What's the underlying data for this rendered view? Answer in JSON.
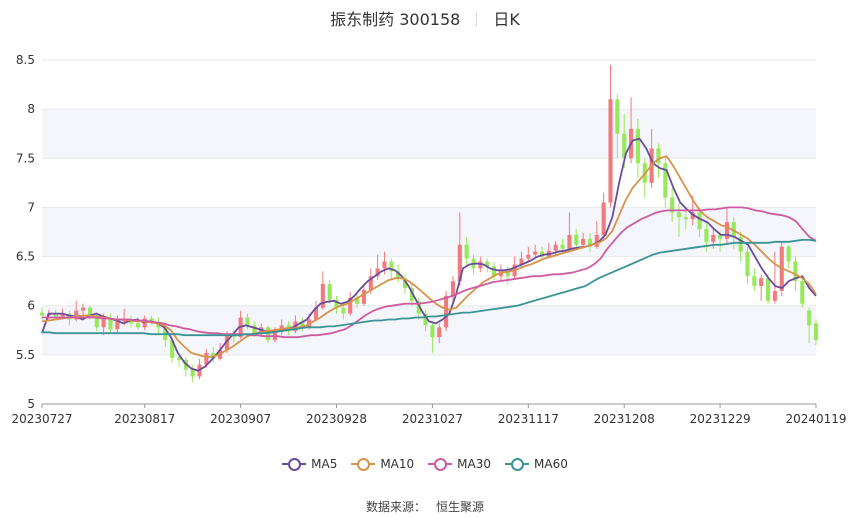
{
  "header": {
    "title": "振东制药 300158",
    "period": "日K"
  },
  "source": {
    "label": "数据来源：",
    "value": "恒生聚源"
  },
  "colors": {
    "up": "#f07b7f",
    "down": "#97e85a",
    "grid": "#e8e8e8",
    "band": "#f4f6fb",
    "axis": "#333333"
  },
  "chart_data": {
    "type": "candlestick",
    "title": "振东制药 300158",
    "subtitle": "日K",
    "ylim": [
      5,
      8.5
    ],
    "yticks": [
      5,
      5.5,
      6,
      6.5,
      7,
      7.5,
      8,
      8.5
    ],
    "ytick_labels": [
      "5",
      "5.5",
      "6",
      "6.5",
      "7",
      "7.5",
      "8",
      "8.5"
    ],
    "grid": true,
    "legend_position": "bottom",
    "x_tick_labels": [
      "20230727",
      "20230817",
      "20230907",
      "20230928",
      "20231027",
      "20231117",
      "20231208",
      "20231229",
      "20240119"
    ],
    "x_tick_index": [
      0,
      15,
      29,
      43,
      57,
      71,
      85,
      99,
      113
    ],
    "candles": [
      [
        5.93,
        5.9,
        5.98,
        5.86
      ],
      [
        5.9,
        5.92,
        5.96,
        5.85
      ],
      [
        5.92,
        5.89,
        5.96,
        5.86
      ],
      [
        5.89,
        5.92,
        5.97,
        5.86
      ],
      [
        5.92,
        5.86,
        5.95,
        5.8
      ],
      [
        5.86,
        5.95,
        6.05,
        5.84
      ],
      [
        5.95,
        5.98,
        6.02,
        5.9
      ],
      [
        5.98,
        5.9,
        6.0,
        5.86
      ],
      [
        5.9,
        5.78,
        5.93,
        5.74
      ],
      [
        5.78,
        5.88,
        5.92,
        5.7
      ],
      [
        5.88,
        5.76,
        5.92,
        5.72
      ],
      [
        5.76,
        5.84,
        5.9,
        5.73
      ],
      [
        5.84,
        5.86,
        5.97,
        5.8
      ],
      [
        5.86,
        5.82,
        5.9,
        5.78
      ],
      [
        5.82,
        5.78,
        5.88,
        5.76
      ],
      [
        5.78,
        5.87,
        5.9,
        5.75
      ],
      [
        5.87,
        5.84,
        5.9,
        5.8
      ],
      [
        5.84,
        5.78,
        5.88,
        5.72
      ],
      [
        5.78,
        5.65,
        5.8,
        5.58
      ],
      [
        5.65,
        5.47,
        5.68,
        5.42
      ],
      [
        5.47,
        5.45,
        5.52,
        5.38
      ],
      [
        5.45,
        5.35,
        5.48,
        5.28
      ],
      [
        5.35,
        5.28,
        5.4,
        5.22
      ],
      [
        5.28,
        5.4,
        5.46,
        5.25
      ],
      [
        5.4,
        5.52,
        5.56,
        5.37
      ],
      [
        5.52,
        5.46,
        5.58,
        5.42
      ],
      [
        5.46,
        5.55,
        5.62,
        5.44
      ],
      [
        5.55,
        5.7,
        5.74,
        5.52
      ],
      [
        5.7,
        5.68,
        5.75,
        5.62
      ],
      [
        5.68,
        5.88,
        5.95,
        5.66
      ],
      [
        5.88,
        5.8,
        5.92,
        5.76
      ],
      [
        5.8,
        5.72,
        5.84,
        5.68
      ],
      [
        5.72,
        5.78,
        5.82,
        5.68
      ],
      [
        5.78,
        5.65,
        5.8,
        5.62
      ],
      [
        5.65,
        5.74,
        5.78,
        5.63
      ],
      [
        5.74,
        5.8,
        5.86,
        5.7
      ],
      [
        5.8,
        5.74,
        5.84,
        5.7
      ],
      [
        5.74,
        5.84,
        5.9,
        5.72
      ],
      [
        5.84,
        5.78,
        5.88,
        5.74
      ],
      [
        5.78,
        5.86,
        5.92,
        5.76
      ],
      [
        5.86,
        5.98,
        6.05,
        5.84
      ],
      [
        5.98,
        6.22,
        6.35,
        5.96
      ],
      [
        6.22,
        6.06,
        6.26,
        6.02
      ],
      [
        6.06,
        5.98,
        6.1,
        5.92
      ],
      [
        5.98,
        5.92,
        6.02,
        5.86
      ],
      [
        5.92,
        6.08,
        6.14,
        5.9
      ],
      [
        6.08,
        6.02,
        6.12,
        5.98
      ],
      [
        6.02,
        6.16,
        6.22,
        6.0
      ],
      [
        6.16,
        6.3,
        6.38,
        6.12
      ],
      [
        6.3,
        6.38,
        6.52,
        6.26
      ],
      [
        6.38,
        6.45,
        6.55,
        6.32
      ],
      [
        6.45,
        6.35,
        6.48,
        6.28
      ],
      [
        6.35,
        6.28,
        6.42,
        6.24
      ],
      [
        6.28,
        6.18,
        6.32,
        6.12
      ],
      [
        6.18,
        6.05,
        6.22,
        6.0
      ],
      [
        6.05,
        5.92,
        6.08,
        5.86
      ],
      [
        5.92,
        5.8,
        5.96,
        5.74
      ],
      [
        5.8,
        5.68,
        5.84,
        5.52
      ],
      [
        5.68,
        5.78,
        5.82,
        5.62
      ],
      [
        5.78,
        6.1,
        6.15,
        5.74
      ],
      [
        6.1,
        6.25,
        6.3,
        6.04
      ],
      [
        6.25,
        6.62,
        6.95,
        6.2
      ],
      [
        6.62,
        6.48,
        6.7,
        6.4
      ],
      [
        6.48,
        6.38,
        6.52,
        6.32
      ],
      [
        6.38,
        6.45,
        6.5,
        6.34
      ],
      [
        6.45,
        6.4,
        6.48,
        6.34
      ],
      [
        6.4,
        6.3,
        6.44,
        6.26
      ],
      [
        6.3,
        6.35,
        6.42,
        6.26
      ],
      [
        6.35,
        6.3,
        6.4,
        6.22
      ],
      [
        6.3,
        6.42,
        6.5,
        6.28
      ],
      [
        6.42,
        6.48,
        6.55,
        6.38
      ],
      [
        6.48,
        6.52,
        6.6,
        6.44
      ],
      [
        6.52,
        6.55,
        6.62,
        6.48
      ],
      [
        6.55,
        6.5,
        6.6,
        6.46
      ],
      [
        6.5,
        6.56,
        6.64,
        6.48
      ],
      [
        6.56,
        6.62,
        6.66,
        6.52
      ],
      [
        6.62,
        6.58,
        6.68,
        6.54
      ],
      [
        6.58,
        6.72,
        6.95,
        6.56
      ],
      [
        6.72,
        6.62,
        6.78,
        6.58
      ],
      [
        6.62,
        6.68,
        6.74,
        6.58
      ],
      [
        6.68,
        6.6,
        6.74,
        6.55
      ],
      [
        6.6,
        6.72,
        6.86,
        6.58
      ],
      [
        6.72,
        7.05,
        7.15,
        6.68
      ],
      [
        7.05,
        8.1,
        8.45,
        7.0
      ],
      [
        8.1,
        7.75,
        8.15,
        7.5
      ],
      [
        7.75,
        7.5,
        7.95,
        7.4
      ],
      [
        7.5,
        7.8,
        8.12,
        7.45
      ],
      [
        7.8,
        7.45,
        7.9,
        7.3
      ],
      [
        7.45,
        7.25,
        7.5,
        7.1
      ],
      [
        7.25,
        7.6,
        7.8,
        7.2
      ],
      [
        7.6,
        7.45,
        7.65,
        7.3
      ],
      [
        7.45,
        7.1,
        7.5,
        7.0
      ],
      [
        7.1,
        6.95,
        7.2,
        6.85
      ],
      [
        6.95,
        6.9,
        7.05,
        6.7
      ],
      [
        6.9,
        6.88,
        6.98,
        6.78
      ],
      [
        6.88,
        6.95,
        7.12,
        6.82
      ],
      [
        6.95,
        6.78,
        7.0,
        6.7
      ],
      [
        6.78,
        6.65,
        6.85,
        6.55
      ],
      [
        6.65,
        6.72,
        6.8,
        6.58
      ],
      [
        6.72,
        6.68,
        6.76,
        6.55
      ],
      [
        6.68,
        6.85,
        7.0,
        6.62
      ],
      [
        6.85,
        6.7,
        6.9,
        6.58
      ],
      [
        6.7,
        6.55,
        6.75,
        6.45
      ],
      [
        6.55,
        6.3,
        6.6,
        6.22
      ],
      [
        6.3,
        6.2,
        6.38,
        6.15
      ],
      [
        6.2,
        6.28,
        6.32,
        6.05
      ],
      [
        6.28,
        6.05,
        6.32,
        6.02
      ],
      [
        6.05,
        6.15,
        6.55,
        6.02
      ],
      [
        6.15,
        6.6,
        6.65,
        6.1
      ],
      [
        6.6,
        6.45,
        6.62,
        6.38
      ],
      [
        6.45,
        6.25,
        6.5,
        6.15
      ],
      [
        6.25,
        6.02,
        6.3,
        5.98
      ],
      [
        5.95,
        5.8,
        5.98,
        5.62
      ],
      [
        5.82,
        5.65,
        5.86,
        5.6
      ]
    ],
    "series": [
      {
        "name": "MA5",
        "color": "#6a4c9c",
        "values": [
          5.72,
          5.92,
          5.92,
          5.92,
          5.9,
          5.89,
          5.86,
          5.9,
          5.92,
          5.89,
          5.87,
          5.85,
          5.82,
          5.85,
          5.86,
          5.83,
          5.84,
          5.82,
          5.78,
          5.68,
          5.52,
          5.42,
          5.36,
          5.34,
          5.38,
          5.45,
          5.53,
          5.62,
          5.7,
          5.78,
          5.8,
          5.78,
          5.76,
          5.74,
          5.74,
          5.75,
          5.76,
          5.78,
          5.82,
          5.86,
          5.95,
          6.02,
          6.04,
          6.05,
          6.02,
          6.04,
          6.1,
          6.18,
          6.25,
          6.3,
          6.35,
          6.38,
          6.36,
          6.3,
          6.2,
          6.07,
          5.94,
          5.84,
          5.82,
          5.86,
          5.92,
          6.12,
          6.38,
          6.42,
          6.43,
          6.42,
          6.38,
          6.36,
          6.36,
          6.37,
          6.4,
          6.43,
          6.46,
          6.5,
          6.52,
          6.53,
          6.55,
          6.56,
          6.58,
          6.59,
          6.6,
          6.62,
          6.65,
          6.72,
          6.9,
          7.25,
          7.55,
          7.68,
          7.7,
          7.6,
          7.45,
          7.4,
          7.38,
          7.2,
          7.05,
          6.98,
          6.92,
          6.88,
          6.85,
          6.78,
          6.72,
          6.72,
          6.7,
          6.66,
          6.62,
          6.5,
          6.38,
          6.28,
          6.2,
          6.18,
          6.25,
          6.28,
          6.3,
          6.18,
          6.1
        ]
      },
      {
        "name": "MA10",
        "color": "#d9924a",
        "values": [
          5.84,
          5.85,
          5.86,
          5.87,
          5.88,
          5.89,
          5.9,
          5.9,
          5.89,
          5.88,
          5.87,
          5.86,
          5.86,
          5.85,
          5.84,
          5.84,
          5.83,
          5.82,
          5.8,
          5.75,
          5.65,
          5.58,
          5.52,
          5.5,
          5.48,
          5.48,
          5.5,
          5.54,
          5.58,
          5.63,
          5.68,
          5.71,
          5.73,
          5.74,
          5.75,
          5.76,
          5.77,
          5.77,
          5.78,
          5.8,
          5.84,
          5.88,
          5.93,
          5.97,
          6.0,
          6.02,
          6.06,
          6.1,
          6.14,
          6.18,
          6.22,
          6.26,
          6.28,
          6.28,
          6.25,
          6.2,
          6.14,
          6.08,
          6.02,
          5.98,
          5.96,
          5.98,
          6.05,
          6.12,
          6.18,
          6.24,
          6.28,
          6.32,
          6.34,
          6.35,
          6.37,
          6.4,
          6.42,
          6.45,
          6.48,
          6.5,
          6.52,
          6.54,
          6.56,
          6.58,
          6.6,
          6.62,
          6.64,
          6.68,
          6.76,
          6.92,
          7.08,
          7.2,
          7.28,
          7.36,
          7.45,
          7.5,
          7.52,
          7.42,
          7.3,
          7.18,
          7.06,
          6.96,
          6.9,
          6.86,
          6.82,
          6.8,
          6.76,
          6.72,
          6.68,
          6.62,
          6.55,
          6.48,
          6.42,
          6.38,
          6.35,
          6.32,
          6.28,
          6.22,
          6.12
        ]
      },
      {
        "name": "MA30",
        "color": "#cf5ca0",
        "values": [
          5.88,
          5.88,
          5.88,
          5.88,
          5.88,
          5.88,
          5.88,
          5.88,
          5.88,
          5.87,
          5.87,
          5.86,
          5.86,
          5.86,
          5.85,
          5.85,
          5.84,
          5.83,
          5.82,
          5.8,
          5.79,
          5.77,
          5.76,
          5.74,
          5.73,
          5.72,
          5.72,
          5.71,
          5.71,
          5.71,
          5.71,
          5.7,
          5.7,
          5.69,
          5.69,
          5.69,
          5.68,
          5.68,
          5.68,
          5.69,
          5.7,
          5.7,
          5.71,
          5.72,
          5.74,
          5.76,
          5.8,
          5.85,
          5.9,
          5.94,
          5.97,
          5.99,
          6.0,
          6.01,
          6.02,
          6.02,
          6.02,
          6.03,
          6.04,
          6.06,
          6.08,
          6.1,
          6.13,
          6.16,
          6.18,
          6.2,
          6.22,
          6.24,
          6.25,
          6.26,
          6.27,
          6.28,
          6.29,
          6.3,
          6.3,
          6.31,
          6.32,
          6.32,
          6.33,
          6.34,
          6.36,
          6.38,
          6.42,
          6.48,
          6.58,
          6.66,
          6.74,
          6.8,
          6.84,
          6.88,
          6.91,
          6.94,
          6.96,
          6.97,
          6.97,
          6.97,
          6.97,
          6.97,
          6.97,
          6.98,
          6.98,
          6.99,
          7.0,
          7.0,
          7.0,
          6.99,
          6.97,
          6.96,
          6.94,
          6.93,
          6.92,
          6.9,
          6.86,
          6.78,
          6.7,
          6.66
        ]
      },
      {
        "name": "MA60",
        "color": "#3c9494",
        "values": [
          5.73,
          5.73,
          5.72,
          5.72,
          5.72,
          5.72,
          5.72,
          5.72,
          5.72,
          5.72,
          5.72,
          5.72,
          5.72,
          5.72,
          5.72,
          5.72,
          5.71,
          5.71,
          5.71,
          5.71,
          5.71,
          5.7,
          5.7,
          5.7,
          5.7,
          5.7,
          5.7,
          5.7,
          5.7,
          5.7,
          5.71,
          5.71,
          5.72,
          5.72,
          5.73,
          5.74,
          5.75,
          5.76,
          5.77,
          5.78,
          5.78,
          5.78,
          5.79,
          5.79,
          5.8,
          5.81,
          5.82,
          5.83,
          5.84,
          5.85,
          5.85,
          5.86,
          5.86,
          5.87,
          5.87,
          5.88,
          5.88,
          5.89,
          5.89,
          5.9,
          5.91,
          5.92,
          5.93,
          5.93,
          5.94,
          5.95,
          5.96,
          5.97,
          5.98,
          5.99,
          6.0,
          6.02,
          6.04,
          6.06,
          6.08,
          6.1,
          6.12,
          6.14,
          6.16,
          6.18,
          6.2,
          6.24,
          6.28,
          6.31,
          6.34,
          6.37,
          6.4,
          6.43,
          6.46,
          6.49,
          6.52,
          6.54,
          6.55,
          6.56,
          6.57,
          6.58,
          6.59,
          6.6,
          6.61,
          6.62,
          6.62,
          6.63,
          6.64,
          6.64,
          6.64,
          6.64,
          6.64,
          6.64,
          6.65,
          6.65,
          6.65,
          6.66,
          6.67,
          6.67,
          6.66
        ]
      }
    ],
    "legend": [
      "MA5",
      "MA10",
      "MA30",
      "MA60"
    ]
  }
}
